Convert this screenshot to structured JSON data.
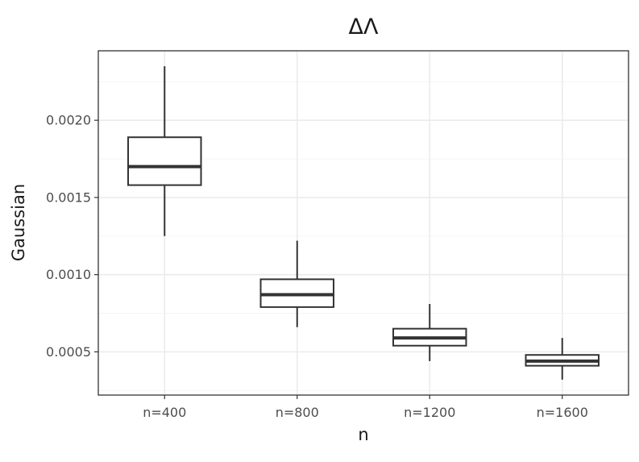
{
  "chart_data": {
    "type": "boxplot",
    "title": "ΔΛ",
    "xlabel": "n",
    "ylabel": "Gaussian",
    "categories": [
      "n=400",
      "n=800",
      "n=1200",
      "n=1600"
    ],
    "boxes": [
      {
        "category": "n=400",
        "whisker_low": 0.00125,
        "q1": 0.00158,
        "median": 0.0017,
        "q3": 0.00189,
        "whisker_high": 0.00235
      },
      {
        "category": "n=800",
        "whisker_low": 0.00066,
        "q1": 0.00079,
        "median": 0.00087,
        "q3": 0.00097,
        "whisker_high": 0.00122
      },
      {
        "category": "n=1200",
        "whisker_low": 0.00044,
        "q1": 0.00054,
        "median": 0.00059,
        "q3": 0.00065,
        "whisker_high": 0.00081
      },
      {
        "category": "n=1600",
        "whisker_low": 0.00032,
        "q1": 0.00041,
        "median": 0.00044,
        "q3": 0.00048,
        "whisker_high": 0.00059
      }
    ],
    "yticks": [
      0.0005,
      0.001,
      0.0015,
      0.002
    ],
    "ytick_labels": [
      "0.0005",
      "0.0010",
      "0.0015",
      "0.0020"
    ],
    "ylim": [
      0.00022,
      0.00245
    ],
    "grid": true,
    "legend": "none",
    "theme": "bw"
  }
}
